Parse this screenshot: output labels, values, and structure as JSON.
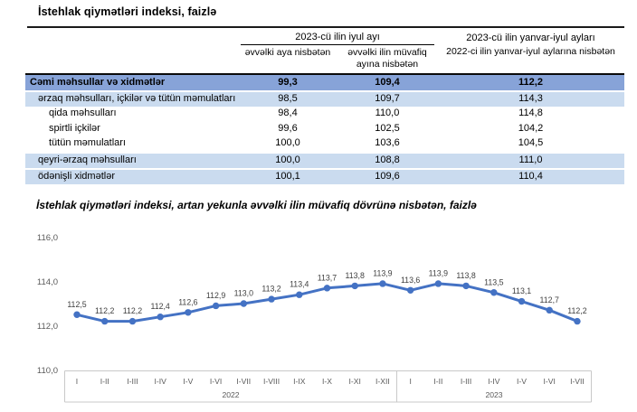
{
  "page": {
    "title": "İstehlak qiymətləri indeksi, faizlə"
  },
  "table": {
    "col_group_1": "2023-cü ilin iyul ayı",
    "sub_col_1": "əvvəlki aya nisbətən",
    "sub_col_2": "əvvəlki ilin müvafiq ayına nisbətən",
    "col_group_2_line1": "2023-cü ilin yanvar-iyul ayları",
    "col_group_2_line2": "2022-ci ilin yanvar-iyul aylarına nisbətən",
    "rows": [
      {
        "label": "Cəmi məhsullar və xidmətlər",
        "v1": "99,3",
        "v2": "109,4",
        "v3": "112,2",
        "style": "total"
      },
      {
        "label": "ərzaq məhsulları, içkilər və tütün məmulatları",
        "v1": "98,5",
        "v2": "109,7",
        "v3": "114,3",
        "style": "group"
      },
      {
        "label": "qida məhsulları",
        "v1": "98,4",
        "v2": "110,0",
        "v3": "114,8",
        "style": "sub"
      },
      {
        "label": "spirtli içkilər",
        "v1": "99,6",
        "v2": "102,5",
        "v3": "104,2",
        "style": "sub"
      },
      {
        "label": "tütün məmulatları",
        "v1": "100,0",
        "v2": "103,6",
        "v3": "104,5",
        "style": "sub"
      },
      {
        "label": "qeyri-ərzaq məhsulları",
        "v1": "100,0",
        "v2": "108,8",
        "v3": "111,0",
        "style": "group"
      },
      {
        "label": "ödənişli xidmətlər",
        "v1": "100,1",
        "v2": "109,6",
        "v3": "110,4",
        "style": "group"
      }
    ]
  },
  "chart_data": {
    "type": "line",
    "title": "İstehlak qiymətləri indeksi, artan yekunla əvvəlki ilin müvafiq dövrünə nisbətən, faizlə",
    "x": [
      "I",
      "I-II",
      "I-III",
      "I-IV",
      "I-V",
      "I-VI",
      "I-VII",
      "I-VIII",
      "I-IX",
      "I-X",
      "I-XI",
      "I-XII",
      "I",
      "I-II",
      "I-III",
      "I-IV",
      "I-V",
      "I-VI",
      "I-VII"
    ],
    "year_groups": [
      {
        "label": "2022",
        "count": 12
      },
      {
        "label": "2023",
        "count": 7
      }
    ],
    "values": [
      112.5,
      112.2,
      112.2,
      112.4,
      112.6,
      112.9,
      113.0,
      113.2,
      113.4,
      113.7,
      113.8,
      113.9,
      113.6,
      113.9,
      113.8,
      113.5,
      113.1,
      112.7,
      112.2
    ],
    "point_labels": [
      "112,5",
      "112,2",
      "112,2",
      "112,4",
      "112,6",
      "112,9",
      "113,0",
      "113,2",
      "113,4",
      "113,7",
      "113,8",
      "113,9",
      "113,6",
      "113,9",
      "113,8",
      "113,5",
      "113,1",
      "112,7",
      "112,2"
    ],
    "ylim": [
      110.0,
      116.0
    ],
    "ytick_values": [
      116.0,
      114.0,
      112.0,
      110.0
    ],
    "ytick_labels": [
      "116,0",
      "114,0",
      "112,0",
      "110,0"
    ],
    "grid": false,
    "legend_position": "none",
    "line_color": "#4472c4",
    "axis_text_color": "#595959",
    "label_text_color": "#3f3f3f",
    "frame_color": "#c9c9c9"
  }
}
